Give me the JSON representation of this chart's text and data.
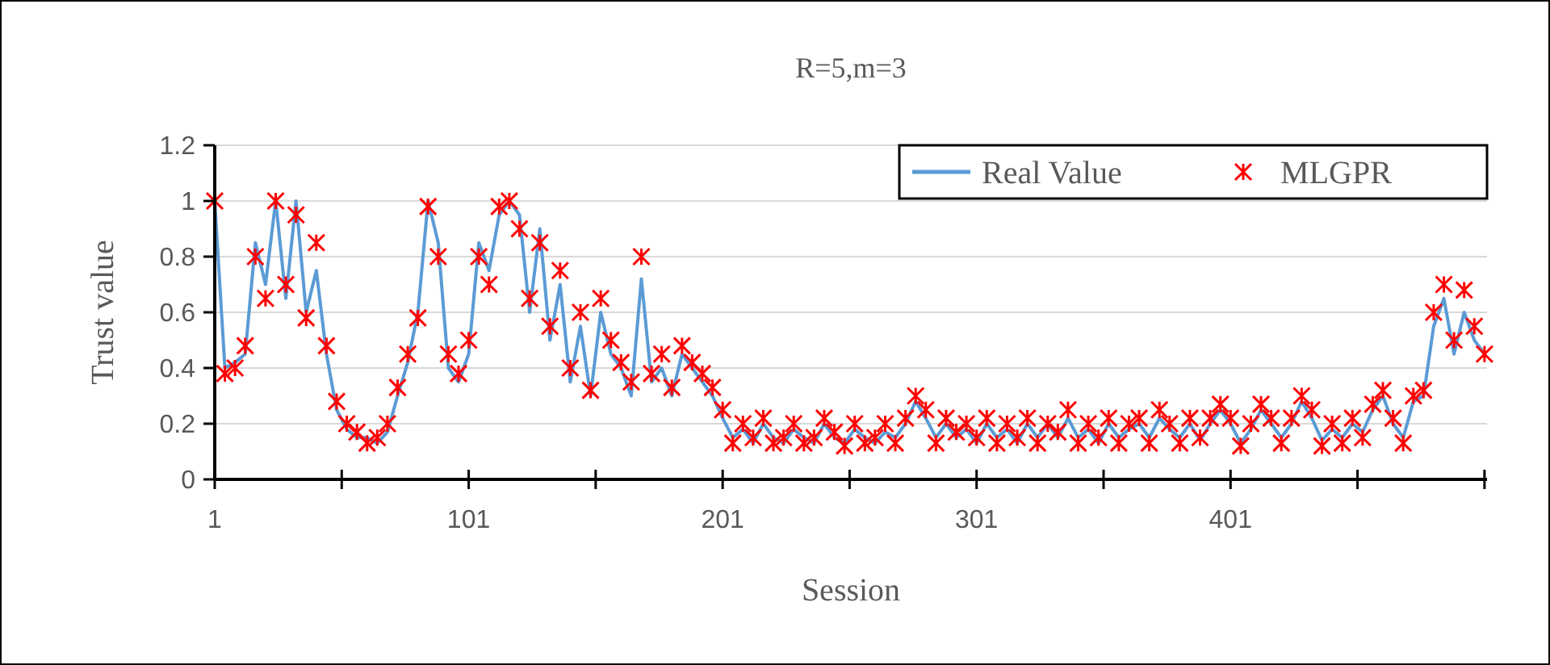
{
  "chart_data": {
    "type": "line",
    "title": "R=5,m=3",
    "xlabel": "Session",
    "ylabel": "Trust value",
    "xlim": [
      1,
      502
    ],
    "xticks": [
      1,
      {
        "value": 51,
        "label": null
      },
      101,
      {
        "value": 151,
        "label": null
      },
      201,
      {
        "value": 251,
        "label": null
      },
      301,
      {
        "value": 351,
        "label": null
      },
      401,
      {
        "value": 451,
        "label": null
      },
      {
        "value": 501,
        "label": null
      }
    ],
    "ylim": [
      0,
      1.2
    ],
    "yticks": [
      0,
      0.2,
      0.4,
      0.6,
      0.8,
      1,
      1.2
    ],
    "grid": "y",
    "legend": "top right",
    "x": [
      1,
      5,
      9,
      13,
      17,
      21,
      25,
      29,
      33,
      37,
      41,
      45,
      49,
      53,
      57,
      61,
      65,
      69,
      73,
      77,
      81,
      85,
      89,
      93,
      97,
      101,
      105,
      109,
      113,
      117,
      121,
      125,
      129,
      133,
      137,
      141,
      145,
      149,
      153,
      157,
      161,
      165,
      169,
      173,
      177,
      181,
      185,
      189,
      193,
      197,
      201,
      205,
      209,
      213,
      217,
      221,
      225,
      229,
      233,
      237,
      241,
      245,
      249,
      253,
      257,
      261,
      265,
      269,
      273,
      277,
      281,
      285,
      289,
      293,
      297,
      301,
      305,
      309,
      313,
      317,
      321,
      325,
      329,
      333,
      337,
      341,
      345,
      349,
      353,
      357,
      361,
      365,
      369,
      373,
      377,
      381,
      385,
      389,
      393,
      397,
      401,
      405,
      409,
      413,
      417,
      421,
      425,
      429,
      433,
      437,
      441,
      445,
      449,
      453,
      457,
      461,
      465,
      469,
      473,
      477,
      481,
      485,
      489,
      493,
      497,
      501
    ],
    "series": [
      {
        "name": "Real Value",
        "color": "#5b9bd5",
        "marker": "none",
        "values": [
          1.0,
          0.4,
          0.42,
          0.45,
          0.85,
          0.7,
          1.0,
          0.65,
          1.0,
          0.6,
          0.75,
          0.45,
          0.25,
          0.18,
          0.15,
          0.15,
          0.13,
          0.17,
          0.3,
          0.42,
          0.6,
          1.0,
          0.85,
          0.4,
          0.35,
          0.45,
          0.85,
          0.75,
          0.95,
          1.0,
          0.95,
          0.6,
          0.9,
          0.5,
          0.7,
          0.35,
          0.55,
          0.3,
          0.6,
          0.45,
          0.4,
          0.3,
          0.72,
          0.35,
          0.4,
          0.3,
          0.45,
          0.4,
          0.35,
          0.3,
          0.22,
          0.15,
          0.18,
          0.13,
          0.2,
          0.15,
          0.13,
          0.18,
          0.15,
          0.13,
          0.2,
          0.15,
          0.13,
          0.18,
          0.15,
          0.13,
          0.17,
          0.15,
          0.2,
          0.28,
          0.22,
          0.15,
          0.2,
          0.15,
          0.18,
          0.13,
          0.2,
          0.15,
          0.18,
          0.13,
          0.2,
          0.15,
          0.2,
          0.15,
          0.22,
          0.15,
          0.18,
          0.13,
          0.2,
          0.15,
          0.18,
          0.2,
          0.15,
          0.22,
          0.18,
          0.15,
          0.2,
          0.14,
          0.2,
          0.25,
          0.2,
          0.13,
          0.18,
          0.25,
          0.2,
          0.15,
          0.2,
          0.28,
          0.22,
          0.14,
          0.18,
          0.15,
          0.2,
          0.17,
          0.25,
          0.3,
          0.2,
          0.15,
          0.28,
          0.3,
          0.55,
          0.65,
          0.45,
          0.6,
          0.5,
          0.45
        ]
      },
      {
        "name": "MLGPR",
        "type": "scatter",
        "color": "#ff0000",
        "marker": "cross",
        "values": [
          1.0,
          0.38,
          0.4,
          0.48,
          0.8,
          0.65,
          1.0,
          0.7,
          0.95,
          0.58,
          0.85,
          0.48,
          0.28,
          0.2,
          0.17,
          0.13,
          0.15,
          0.2,
          0.33,
          0.45,
          0.58,
          0.98,
          0.8,
          0.45,
          0.38,
          0.5,
          0.8,
          0.7,
          0.98,
          1.0,
          0.9,
          0.65,
          0.85,
          0.55,
          0.75,
          0.4,
          0.6,
          0.32,
          0.65,
          0.5,
          0.42,
          0.35,
          0.8,
          0.38,
          0.45,
          0.33,
          0.48,
          0.42,
          0.38,
          0.33,
          0.25,
          0.13,
          0.2,
          0.15,
          0.22,
          0.13,
          0.15,
          0.2,
          0.13,
          0.15,
          0.22,
          0.17,
          0.12,
          0.2,
          0.13,
          0.15,
          0.2,
          0.13,
          0.22,
          0.3,
          0.25,
          0.13,
          0.22,
          0.17,
          0.2,
          0.15,
          0.22,
          0.13,
          0.2,
          0.15,
          0.22,
          0.13,
          0.2,
          0.17,
          0.25,
          0.13,
          0.2,
          0.15,
          0.22,
          0.13,
          0.2,
          0.22,
          0.13,
          0.25,
          0.2,
          0.13,
          0.22,
          0.15,
          0.22,
          0.27,
          0.22,
          0.12,
          0.2,
          0.27,
          0.22,
          0.13,
          0.22,
          0.3,
          0.25,
          0.12,
          0.2,
          0.13,
          0.22,
          0.15,
          0.27,
          0.32,
          0.22,
          0.13,
          0.3,
          0.32,
          0.6,
          0.7,
          0.5,
          0.68,
          0.55,
          0.45
        ]
      }
    ]
  }
}
